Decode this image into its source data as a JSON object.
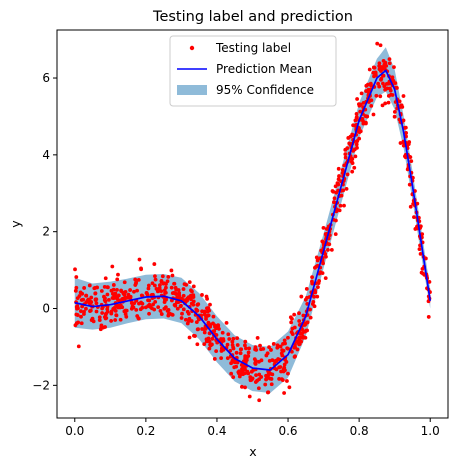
{
  "chart_data": {
    "type": "line",
    "title": "Testing label and prediction",
    "xlabel": "x",
    "ylabel": "y",
    "xlim": [
      -0.05,
      1.05
    ],
    "ylim": [
      -2.85,
      7.25
    ],
    "xticks": [
      0.0,
      0.2,
      0.4,
      0.6,
      0.8,
      1.0
    ],
    "xtick_labels": [
      "0.0",
      "0.2",
      "0.4",
      "0.6",
      "0.8",
      "1.0"
    ],
    "yticks": [
      -2,
      0,
      2,
      4,
      6
    ],
    "ytick_labels": [
      "−2",
      "0",
      "2",
      "4",
      "6"
    ],
    "grid": false,
    "legend_position": "top-center",
    "series": [
      {
        "name": "Testing label",
        "kind": "scatter",
        "color": "#ff0000",
        "noise_sd": 0.32,
        "n_points": 1000
      },
      {
        "name": "Prediction Mean",
        "kind": "line",
        "color": "#0000ff",
        "x": [
          0.0,
          0.05,
          0.1,
          0.15,
          0.2,
          0.25,
          0.3,
          0.35,
          0.4,
          0.45,
          0.5,
          0.55,
          0.6,
          0.65,
          0.7,
          0.75,
          0.8,
          0.85,
          0.875,
          0.9,
          0.925,
          0.95,
          0.975,
          1.0
        ],
        "y": [
          0.15,
          0.05,
          0.1,
          0.2,
          0.3,
          0.32,
          0.2,
          -0.2,
          -0.8,
          -1.3,
          -1.55,
          -1.6,
          -1.2,
          -0.2,
          1.5,
          3.2,
          4.9,
          6.0,
          6.2,
          5.7,
          4.6,
          3.2,
          1.7,
          0.2
        ]
      },
      {
        "name": "95% Confidence",
        "kind": "band",
        "color": "#1f77b4",
        "opacity": 0.5,
        "x": [
          0.0,
          0.05,
          0.1,
          0.15,
          0.2,
          0.25,
          0.3,
          0.35,
          0.4,
          0.45,
          0.5,
          0.55,
          0.6,
          0.65,
          0.7,
          0.75,
          0.8,
          0.85,
          0.875,
          0.9,
          0.925,
          0.95,
          0.975,
          1.0
        ],
        "lower": [
          -0.5,
          -0.55,
          -0.5,
          -0.38,
          -0.28,
          -0.26,
          -0.38,
          -0.8,
          -1.4,
          -1.9,
          -2.15,
          -2.2,
          -1.8,
          -0.72,
          1.05,
          2.75,
          4.45,
          5.5,
          5.65,
          5.18,
          4.18,
          2.82,
          1.35,
          0.0
        ],
        "upper": [
          0.8,
          0.65,
          0.7,
          0.78,
          0.88,
          0.9,
          0.8,
          0.4,
          -0.2,
          -0.7,
          -0.95,
          -1.0,
          -0.6,
          0.32,
          1.95,
          3.65,
          5.35,
          6.5,
          6.8,
          6.22,
          5.02,
          3.58,
          2.05,
          0.5
        ]
      }
    ]
  }
}
